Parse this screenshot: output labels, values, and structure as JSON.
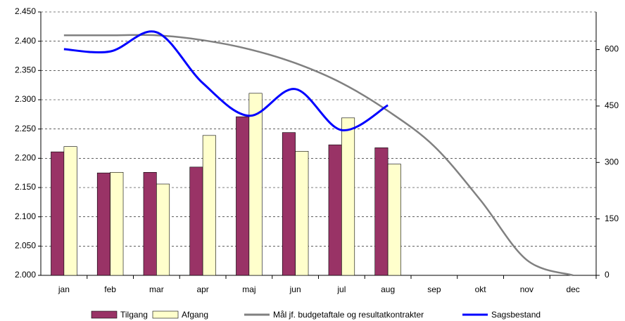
{
  "chart_data": {
    "type": "bar-line",
    "categories": [
      "jan",
      "feb",
      "mar",
      "apr",
      "maj",
      "jun",
      "jul",
      "aug",
      "sep",
      "okt",
      "nov",
      "dec"
    ],
    "series": [
      {
        "name": "Tilgang",
        "type": "bar",
        "color": "#993366",
        "values": [
          2211,
          2175,
          2176,
          2185,
          2271,
          2244,
          2223,
          2218,
          null,
          null,
          null,
          null
        ]
      },
      {
        "name": "Afgang",
        "type": "bar",
        "color": "#FFFFCC",
        "values": [
          2220,
          2176,
          2156,
          2239,
          2311,
          2212,
          2269,
          2190,
          null,
          null,
          null,
          null
        ]
      },
      {
        "name": "Mål jf. budgetaftale og resultatkontrakter",
        "type": "line",
        "axis": "y2",
        "color": "#808080",
        "values": [
          638,
          638,
          638,
          625,
          601,
          564,
          511,
          437,
          343,
          200,
          41,
          0
        ]
      },
      {
        "name": "Sagsbestand",
        "type": "line",
        "axis": "y2",
        "color": "#0000FF",
        "values": [
          601,
          595,
          646,
          511,
          424,
          495,
          386,
          452,
          null,
          null,
          null,
          null
        ]
      }
    ],
    "ylim": [
      2000,
      2450
    ],
    "yticks": [
      {
        "value": 2000,
        "label": "2.000"
      },
      {
        "value": 2050,
        "label": "2.050"
      },
      {
        "value": 2100,
        "label": "2.100"
      },
      {
        "value": 2150,
        "label": "2.150"
      },
      {
        "value": 2200,
        "label": "2.200"
      },
      {
        "value": 2250,
        "label": "2.250"
      },
      {
        "value": 2300,
        "label": "2.300"
      },
      {
        "value": 2350,
        "label": "2.350"
      },
      {
        "value": 2400,
        "label": "2.400"
      },
      {
        "value": 2450,
        "label": "2.450"
      }
    ],
    "y2lim": [
      0,
      700
    ],
    "y2ticks": [
      0,
      150,
      300,
      450,
      600
    ],
    "grid": true,
    "legend": "bottom"
  }
}
